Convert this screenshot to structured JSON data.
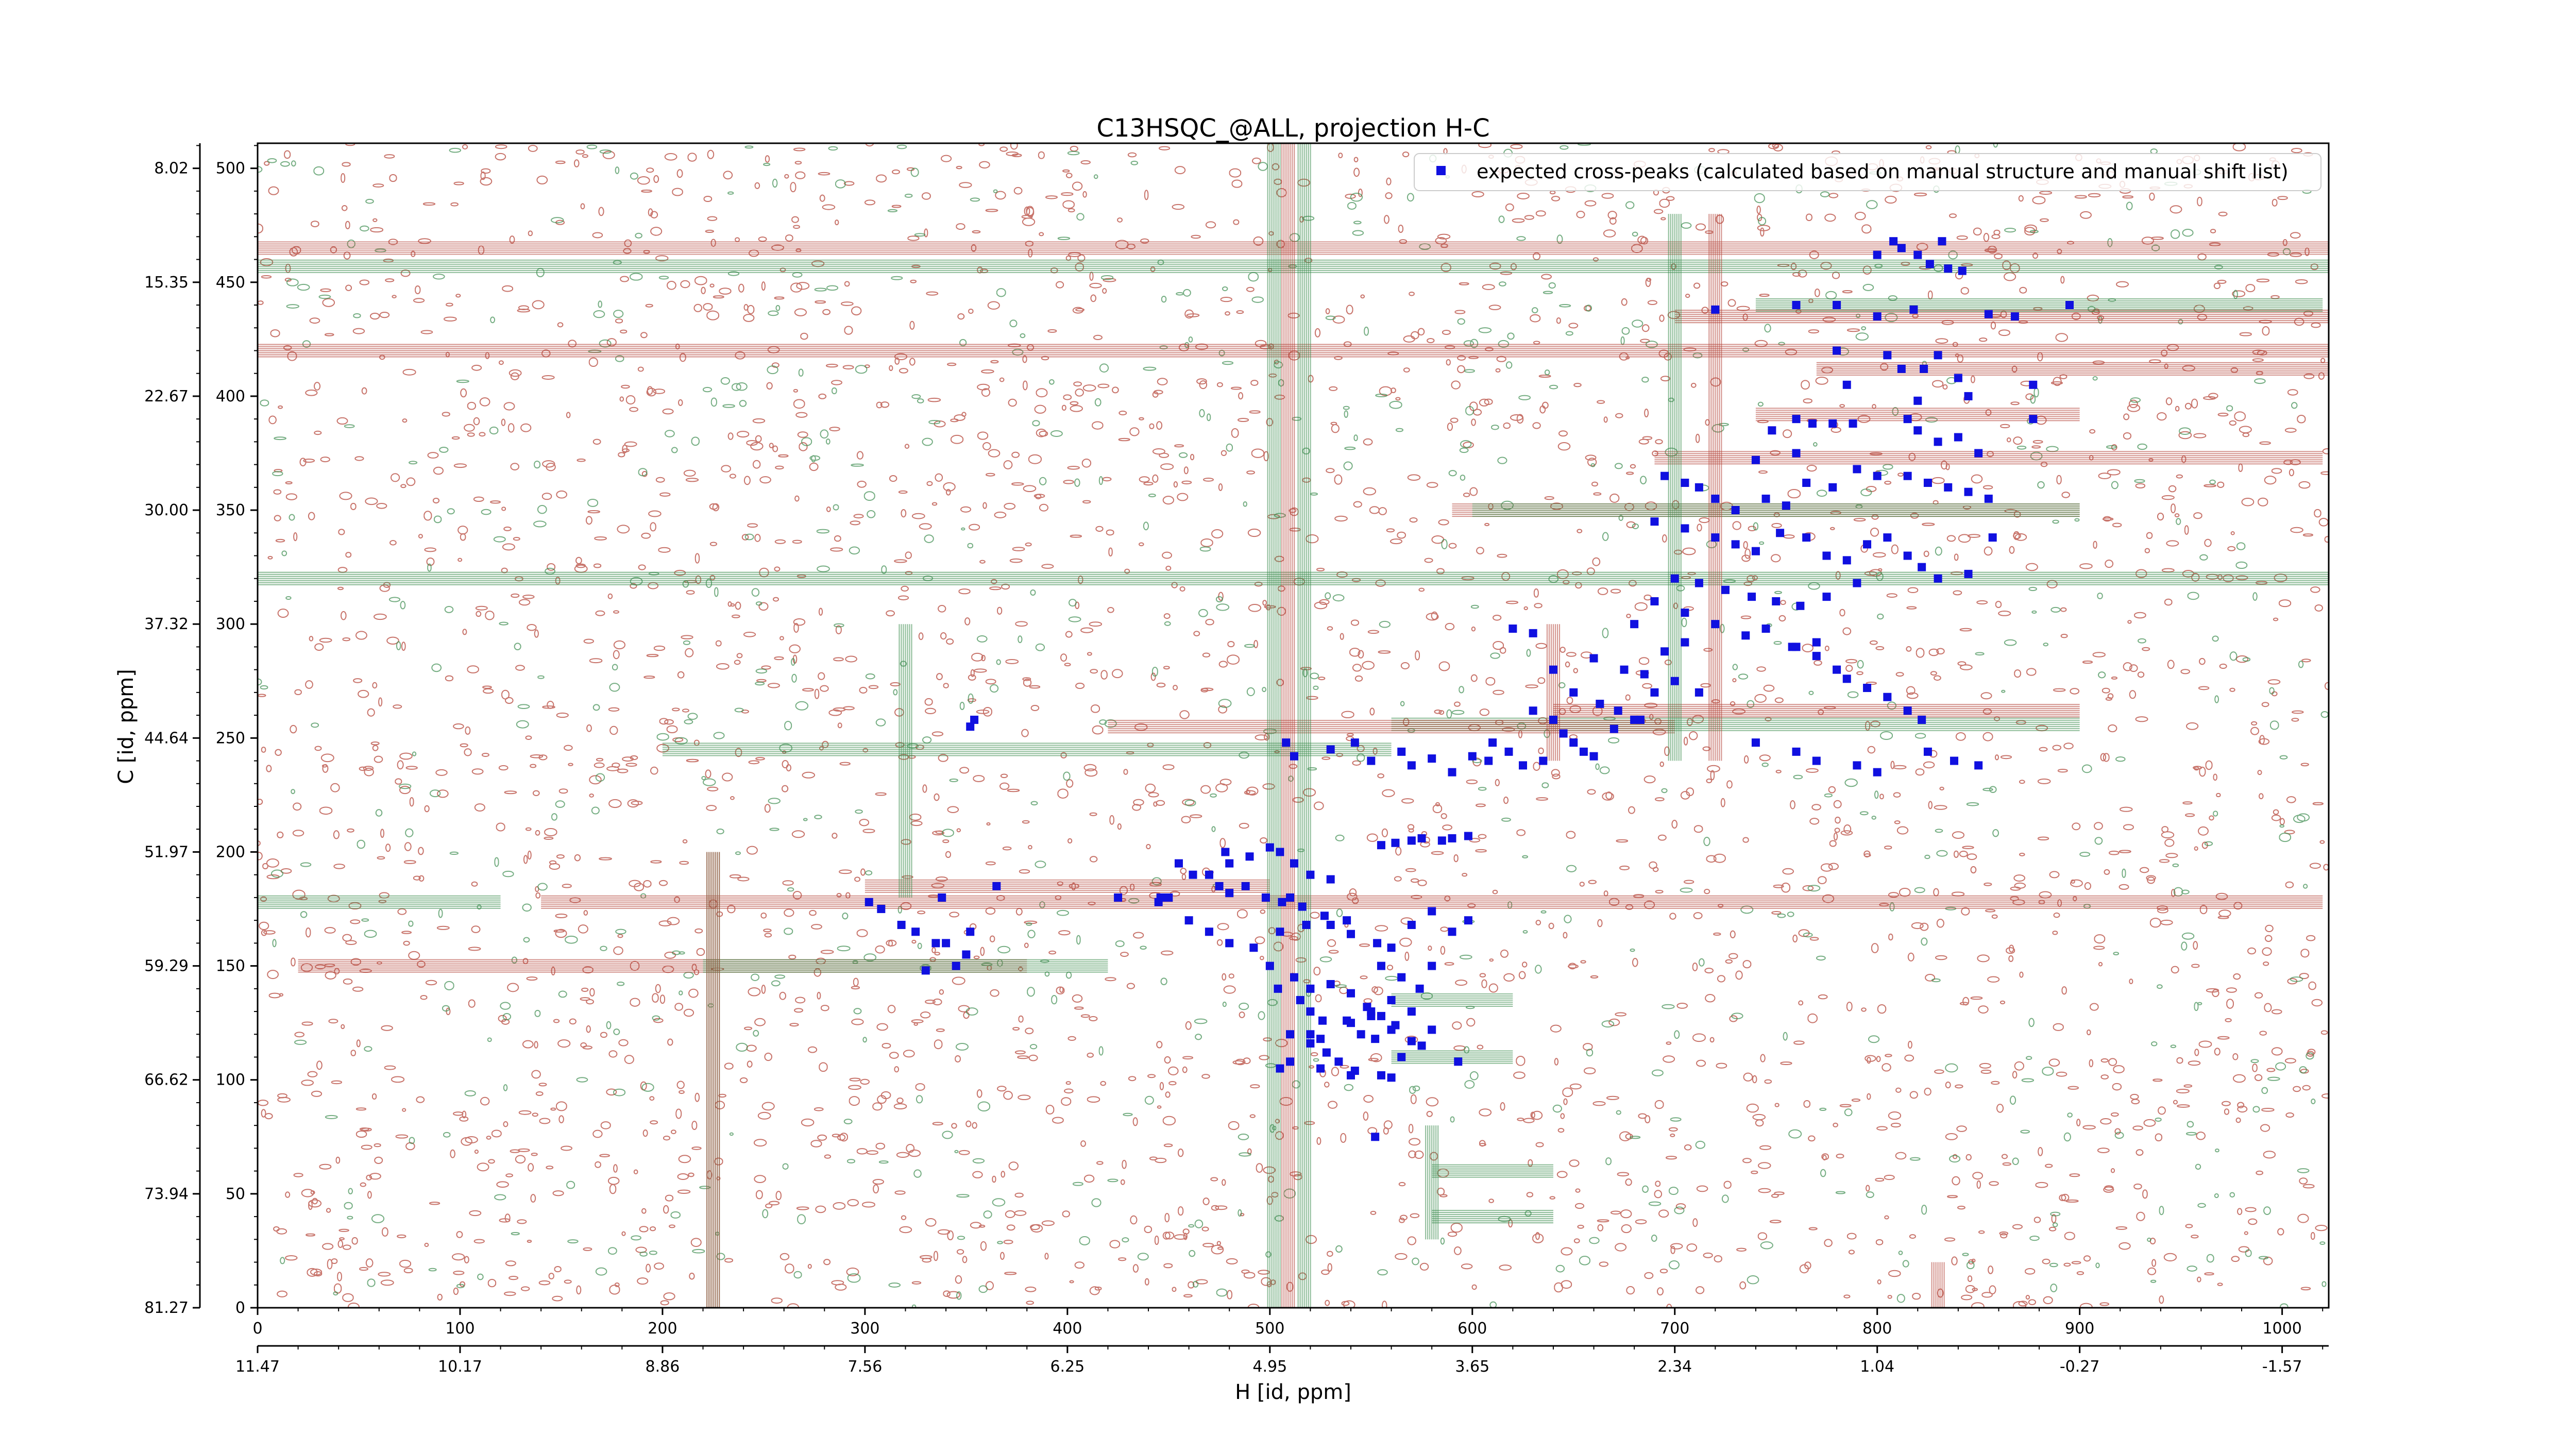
{
  "chart_data": {
    "type": "scatter",
    "title": "C13HSQC_@ALL, projection H-C",
    "xlabel": "H [id, ppm]",
    "ylabel": "C [id, ppm]",
    "x_index_ticks": [
      "0",
      "100",
      "200",
      "300",
      "400",
      "500",
      "600",
      "700",
      "800",
      "900",
      "1000"
    ],
    "x_ppm_ticks": [
      "11.47",
      "10.17",
      "8.86",
      "7.56",
      "6.25",
      "4.95",
      "3.65",
      "2.34",
      "1.04",
      "-0.27",
      "-1.57"
    ],
    "y_index_ticks": [
      "0",
      "50",
      "100",
      "150",
      "200",
      "250",
      "300",
      "350",
      "400",
      "450",
      "500"
    ],
    "y_ppm_ticks": [
      "81.27",
      "73.94",
      "66.62",
      "59.29",
      "51.97",
      "44.64",
      "37.32",
      "30.00",
      "22.67",
      "15.35",
      "8.02"
    ],
    "xlim": [
      0,
      1023
    ],
    "ylim": [
      0,
      511
    ],
    "legend": {
      "label": "expected cross-peaks (calculated based on manual structure and manual shift list)",
      "placement": "top-right"
    },
    "colors": {
      "positive_contours": "#b5453a",
      "negative_contours": "#3c8c4e",
      "peaks": "#1010e0"
    },
    "grid": false,
    "series": [
      {
        "name": "expected cross-peaks (calculated based on manual structure and manual shift list)",
        "points": [
          [
            808,
            468
          ],
          [
            812,
            465
          ],
          [
            820,
            462
          ],
          [
            826,
            458
          ],
          [
            835,
            456
          ],
          [
            800,
            462
          ],
          [
            832,
            468
          ],
          [
            842,
            455
          ],
          [
            720,
            438
          ],
          [
            760,
            440
          ],
          [
            780,
            440
          ],
          [
            800,
            435
          ],
          [
            818,
            438
          ],
          [
            855,
            436
          ],
          [
            868,
            435
          ],
          [
            895,
            440
          ],
          [
            780,
            420
          ],
          [
            805,
            418
          ],
          [
            812,
            412
          ],
          [
            823,
            412
          ],
          [
            830,
            418
          ],
          [
            840,
            408
          ],
          [
            845,
            400
          ],
          [
            820,
            398
          ],
          [
            785,
            405
          ],
          [
            877,
            405
          ],
          [
            877,
            390
          ],
          [
            815,
            390
          ],
          [
            820,
            385
          ],
          [
            830,
            380
          ],
          [
            840,
            382
          ],
          [
            850,
            375
          ],
          [
            760,
            390
          ],
          [
            768,
            388
          ],
          [
            778,
            388
          ],
          [
            788,
            388
          ],
          [
            748,
            385
          ],
          [
            760,
            375
          ],
          [
            740,
            372
          ],
          [
            695,
            365
          ],
          [
            705,
            362
          ],
          [
            712,
            360
          ],
          [
            720,
            355
          ],
          [
            730,
            350
          ],
          [
            745,
            355
          ],
          [
            755,
            352
          ],
          [
            765,
            362
          ],
          [
            778,
            360
          ],
          [
            790,
            368
          ],
          [
            800,
            365
          ],
          [
            815,
            365
          ],
          [
            825,
            362
          ],
          [
            835,
            360
          ],
          [
            845,
            358
          ],
          [
            855,
            355
          ],
          [
            690,
            345
          ],
          [
            705,
            342
          ],
          [
            720,
            338
          ],
          [
            730,
            335
          ],
          [
            740,
            332
          ],
          [
            752,
            340
          ],
          [
            765,
            338
          ],
          [
            775,
            330
          ],
          [
            785,
            328
          ],
          [
            795,
            335
          ],
          [
            805,
            338
          ],
          [
            815,
            330
          ],
          [
            822,
            325
          ],
          [
            830,
            320
          ],
          [
            845,
            322
          ],
          [
            857,
            338
          ],
          [
            700,
            320
          ],
          [
            712,
            318
          ],
          [
            725,
            315
          ],
          [
            738,
            312
          ],
          [
            750,
            310
          ],
          [
            762,
            308
          ],
          [
            775,
            312
          ],
          [
            790,
            318
          ],
          [
            690,
            310
          ],
          [
            680,
            300
          ],
          [
            705,
            305
          ],
          [
            720,
            300
          ],
          [
            735,
            295
          ],
          [
            745,
            298
          ],
          [
            758,
            290
          ],
          [
            770,
            292
          ],
          [
            620,
            298
          ],
          [
            630,
            296
          ],
          [
            660,
            285
          ],
          [
            675,
            280
          ],
          [
            685,
            278
          ],
          [
            695,
            288
          ],
          [
            705,
            292
          ],
          [
            640,
            280
          ],
          [
            650,
            270
          ],
          [
            663,
            265
          ],
          [
            672,
            262
          ],
          [
            683,
            258
          ],
          [
            690,
            270
          ],
          [
            700,
            275
          ],
          [
            712,
            270
          ],
          [
            760,
            290
          ],
          [
            770,
            286
          ],
          [
            780,
            280
          ],
          [
            785,
            276
          ],
          [
            795,
            272
          ],
          [
            805,
            268
          ],
          [
            815,
            262
          ],
          [
            822,
            258
          ],
          [
            630,
            262
          ],
          [
            640,
            258
          ],
          [
            645,
            252
          ],
          [
            650,
            248
          ],
          [
            655,
            244
          ],
          [
            660,
            242
          ],
          [
            670,
            254
          ],
          [
            680,
            258
          ],
          [
            610,
            248
          ],
          [
            618,
            244
          ],
          [
            625,
            238
          ],
          [
            635,
            240
          ],
          [
            542,
            248
          ],
          [
            565,
            244
          ],
          [
            580,
            241
          ],
          [
            608,
            240
          ],
          [
            740,
            248
          ],
          [
            760,
            244
          ],
          [
            770,
            240
          ],
          [
            790,
            238
          ],
          [
            800,
            235
          ],
          [
            825,
            244
          ],
          [
            838,
            240
          ],
          [
            850,
            238
          ],
          [
            508,
            248
          ],
          [
            512,
            242
          ],
          [
            530,
            245
          ],
          [
            550,
            240
          ],
          [
            570,
            238
          ],
          [
            590,
            235
          ],
          [
            600,
            242
          ],
          [
            352,
            255
          ],
          [
            354,
            258
          ],
          [
            478,
            200
          ],
          [
            480,
            195
          ],
          [
            490,
            198
          ],
          [
            500,
            202
          ],
          [
            505,
            200
          ],
          [
            512,
            195
          ],
          [
            520,
            190
          ],
          [
            530,
            188
          ],
          [
            470,
            190
          ],
          [
            480,
            182
          ],
          [
            488,
            185
          ],
          [
            498,
            180
          ],
          [
            506,
            178
          ],
          [
            516,
            176
          ],
          [
            527,
            172
          ],
          [
            538,
            170
          ],
          [
            455,
            195
          ],
          [
            462,
            190
          ],
          [
            450,
            180
          ],
          [
            445,
            178
          ],
          [
            460,
            170
          ],
          [
            470,
            165
          ],
          [
            480,
            160
          ],
          [
            492,
            158
          ],
          [
            505,
            165
          ],
          [
            518,
            168
          ],
          [
            530,
            168
          ],
          [
            540,
            164
          ],
          [
            553,
            160
          ],
          [
            560,
            158
          ],
          [
            570,
            168
          ],
          [
            580,
            174
          ],
          [
            500,
            150
          ],
          [
            512,
            145
          ],
          [
            520,
            140
          ],
          [
            530,
            142
          ],
          [
            540,
            138
          ],
          [
            548,
            132
          ],
          [
            555,
            128
          ],
          [
            562,
            124
          ],
          [
            504,
            140
          ],
          [
            515,
            135
          ],
          [
            520,
            130
          ],
          [
            526,
            126
          ],
          [
            538,
            126
          ],
          [
            545,
            120
          ],
          [
            552,
            118
          ],
          [
            560,
            135
          ],
          [
            510,
            120
          ],
          [
            520,
            116
          ],
          [
            528,
            112
          ],
          [
            534,
            108
          ],
          [
            542,
            104
          ],
          [
            555,
            102
          ],
          [
            565,
            110
          ],
          [
            575,
            115
          ],
          [
            520,
            120
          ],
          [
            525,
            118
          ],
          [
            540,
            125
          ],
          [
            550,
            128
          ],
          [
            570,
            130
          ],
          [
            580,
            150
          ],
          [
            590,
            165
          ],
          [
            598,
            170
          ],
          [
            550,
            130
          ],
          [
            560,
            122
          ],
          [
            570,
            117
          ],
          [
            580,
            122
          ],
          [
            574,
            140
          ],
          [
            565,
            145
          ],
          [
            555,
            150
          ],
          [
            325,
            165
          ],
          [
            335,
            160
          ],
          [
            340,
            160
          ],
          [
            352,
            165
          ],
          [
            318,
            168
          ],
          [
            350,
            155
          ],
          [
            345,
            150
          ],
          [
            330,
            148
          ],
          [
            302,
            178
          ],
          [
            308,
            175
          ],
          [
            338,
            180
          ],
          [
            365,
            185
          ],
          [
            425,
            180
          ],
          [
            446,
            180
          ],
          [
            475,
            185
          ],
          [
            510,
            180
          ],
          [
            505,
            105
          ],
          [
            510,
            108
          ],
          [
            525,
            105
          ],
          [
            540,
            102
          ],
          [
            560,
            101
          ],
          [
            593,
            108
          ],
          [
            552,
            75
          ],
          [
            555,
            203
          ],
          [
            570,
            205
          ],
          [
            585,
            205
          ],
          [
            590,
            206
          ],
          [
            598,
            207
          ],
          [
            562,
            204
          ],
          [
            575,
            206
          ]
        ]
      }
    ]
  }
}
